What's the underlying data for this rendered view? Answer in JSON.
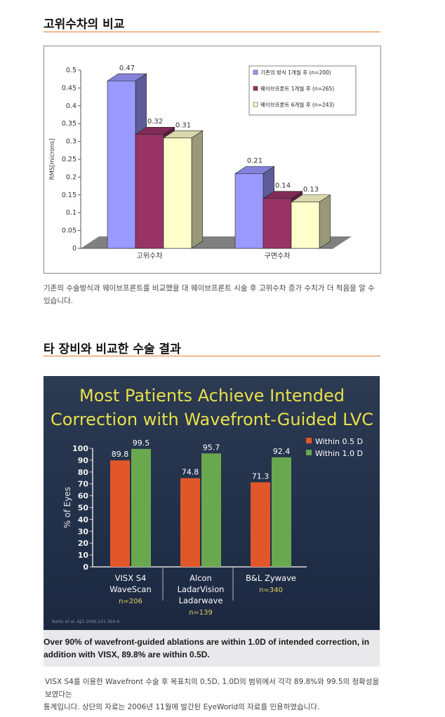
{
  "section1": {
    "title": "고위수차의 비교",
    "caption": "기존의 수술방식과 웨이브프론트를 비교했을 대 웨이브프론트 시술 후 고위수차 증가 수치가 더 적음을 알 수 있습니다."
  },
  "section2": {
    "title": "타 장비와 비교한 수술 결과",
    "note_line1": "VISX S4를 이용한 Wavefront 수술 후 목표치의 0.5D, 1.0D의 범위에서 각각 89.8%와 99.5의 정확성을 보였다는",
    "note_line2": "통계입니다.  상단의 자료는 2006년 11월에 발간된 EyeWorld의 자료를 인용하였습니다."
  },
  "slide": {
    "title_line1": "Most Patients Achieve Intended",
    "title_line2": "Correction with Wavefront-Guided LVC",
    "citation": "Netto et al. AJO 2006;141:360-6",
    "footer_line1": "Over 90% of wavefront-guided ablations are within 1.0D of intended correction, in",
    "footer_line2": "addition with VISX, 89.8% are within 0.5D."
  },
  "colors": {
    "accent_rule": "#e07b2a",
    "series1": "#9999ff",
    "series2": "#993366",
    "series3": "#ffffcc",
    "within05": "#e2572a",
    "within10": "#6aa84f",
    "slide_title": "#e8e04a"
  },
  "chart_data": [
    {
      "type": "bar",
      "ylabel": "RMS[microns]",
      "ylim": [
        0,
        0.5
      ],
      "yticks": [
        "0",
        "0.05",
        "0.1",
        "0.15",
        "0.2",
        "0.25",
        "0.3",
        "0.35",
        "0.4",
        "0.45",
        "0.5"
      ],
      "categories": [
        "고위수차",
        "구면수차"
      ],
      "series": [
        {
          "name": "기존의 방식 1개월 후 (n=200)",
          "values": [
            0.47,
            0.21
          ]
        },
        {
          "name": "웨이브프론트 1개월 후 (n=265)",
          "values": [
            0.32,
            0.14
          ]
        },
        {
          "name": "웨이브프론트 6개월 후 (n=243)",
          "values": [
            0.31,
            0.13
          ]
        }
      ],
      "data_labels": [
        [
          "0.47",
          "0.32",
          "0.31"
        ],
        [
          "0.21",
          "0.14",
          "0.13"
        ]
      ],
      "legend": "top-right",
      "style": "3d"
    },
    {
      "type": "bar",
      "ylabel": "% of Eyes",
      "ylim": [
        0,
        100
      ],
      "yticks": [
        "0",
        "10",
        "20",
        "30",
        "40",
        "50",
        "60",
        "70",
        "80",
        "90",
        "100"
      ],
      "categories": [
        {
          "lines": [
            "VISX S4",
            "WaveScan"
          ],
          "n": "n=206"
        },
        {
          "lines": [
            "Alcon",
            "LadarVision",
            "Ladarwave"
          ],
          "n": "n=139"
        },
        {
          "lines": [
            "B&L Zywave"
          ],
          "n": "n=340"
        }
      ],
      "series": [
        {
          "name": "Within 0.5 D",
          "values": [
            89.8,
            74.8,
            71.3
          ]
        },
        {
          "name": "Within 1.0 D",
          "values": [
            99.5,
            95.7,
            92.4
          ]
        }
      ],
      "data_labels": [
        [
          "89.8",
          "74.8",
          "71.3"
        ],
        [
          "99.5",
          "95.7",
          "92.4"
        ]
      ],
      "legend": "top-right"
    }
  ]
}
